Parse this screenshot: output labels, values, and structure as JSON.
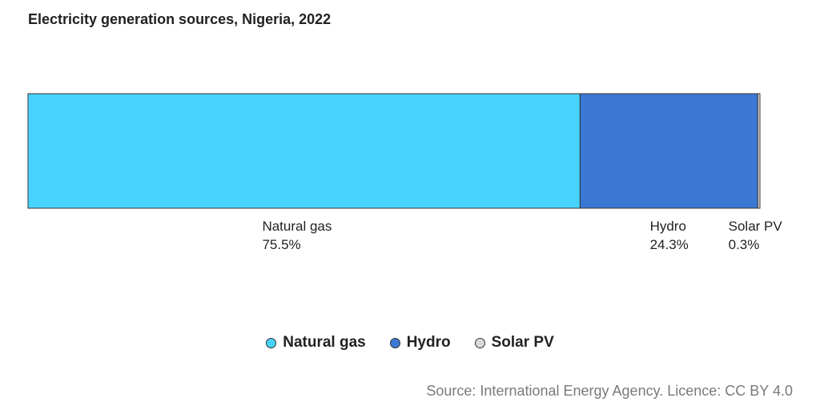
{
  "chart_data": {
    "type": "bar",
    "orientation": "horizontal-stacked-100",
    "title": "Electricity generation sources, Nigeria, 2022",
    "series": [
      {
        "name": "Natural gas",
        "value": 75.5,
        "label": "75.5%",
        "color": "#48d3ff"
      },
      {
        "name": "Hydro",
        "value": 24.3,
        "label": "24.3%",
        "color": "#3b78d3"
      },
      {
        "name": "Solar PV",
        "value": 0.3,
        "label": "0.3%",
        "color": "#d9d9d9"
      }
    ],
    "unit": "%",
    "legend_position": "bottom",
    "source": "Source: International Energy Agency. Licence: CC BY 4.0"
  }
}
